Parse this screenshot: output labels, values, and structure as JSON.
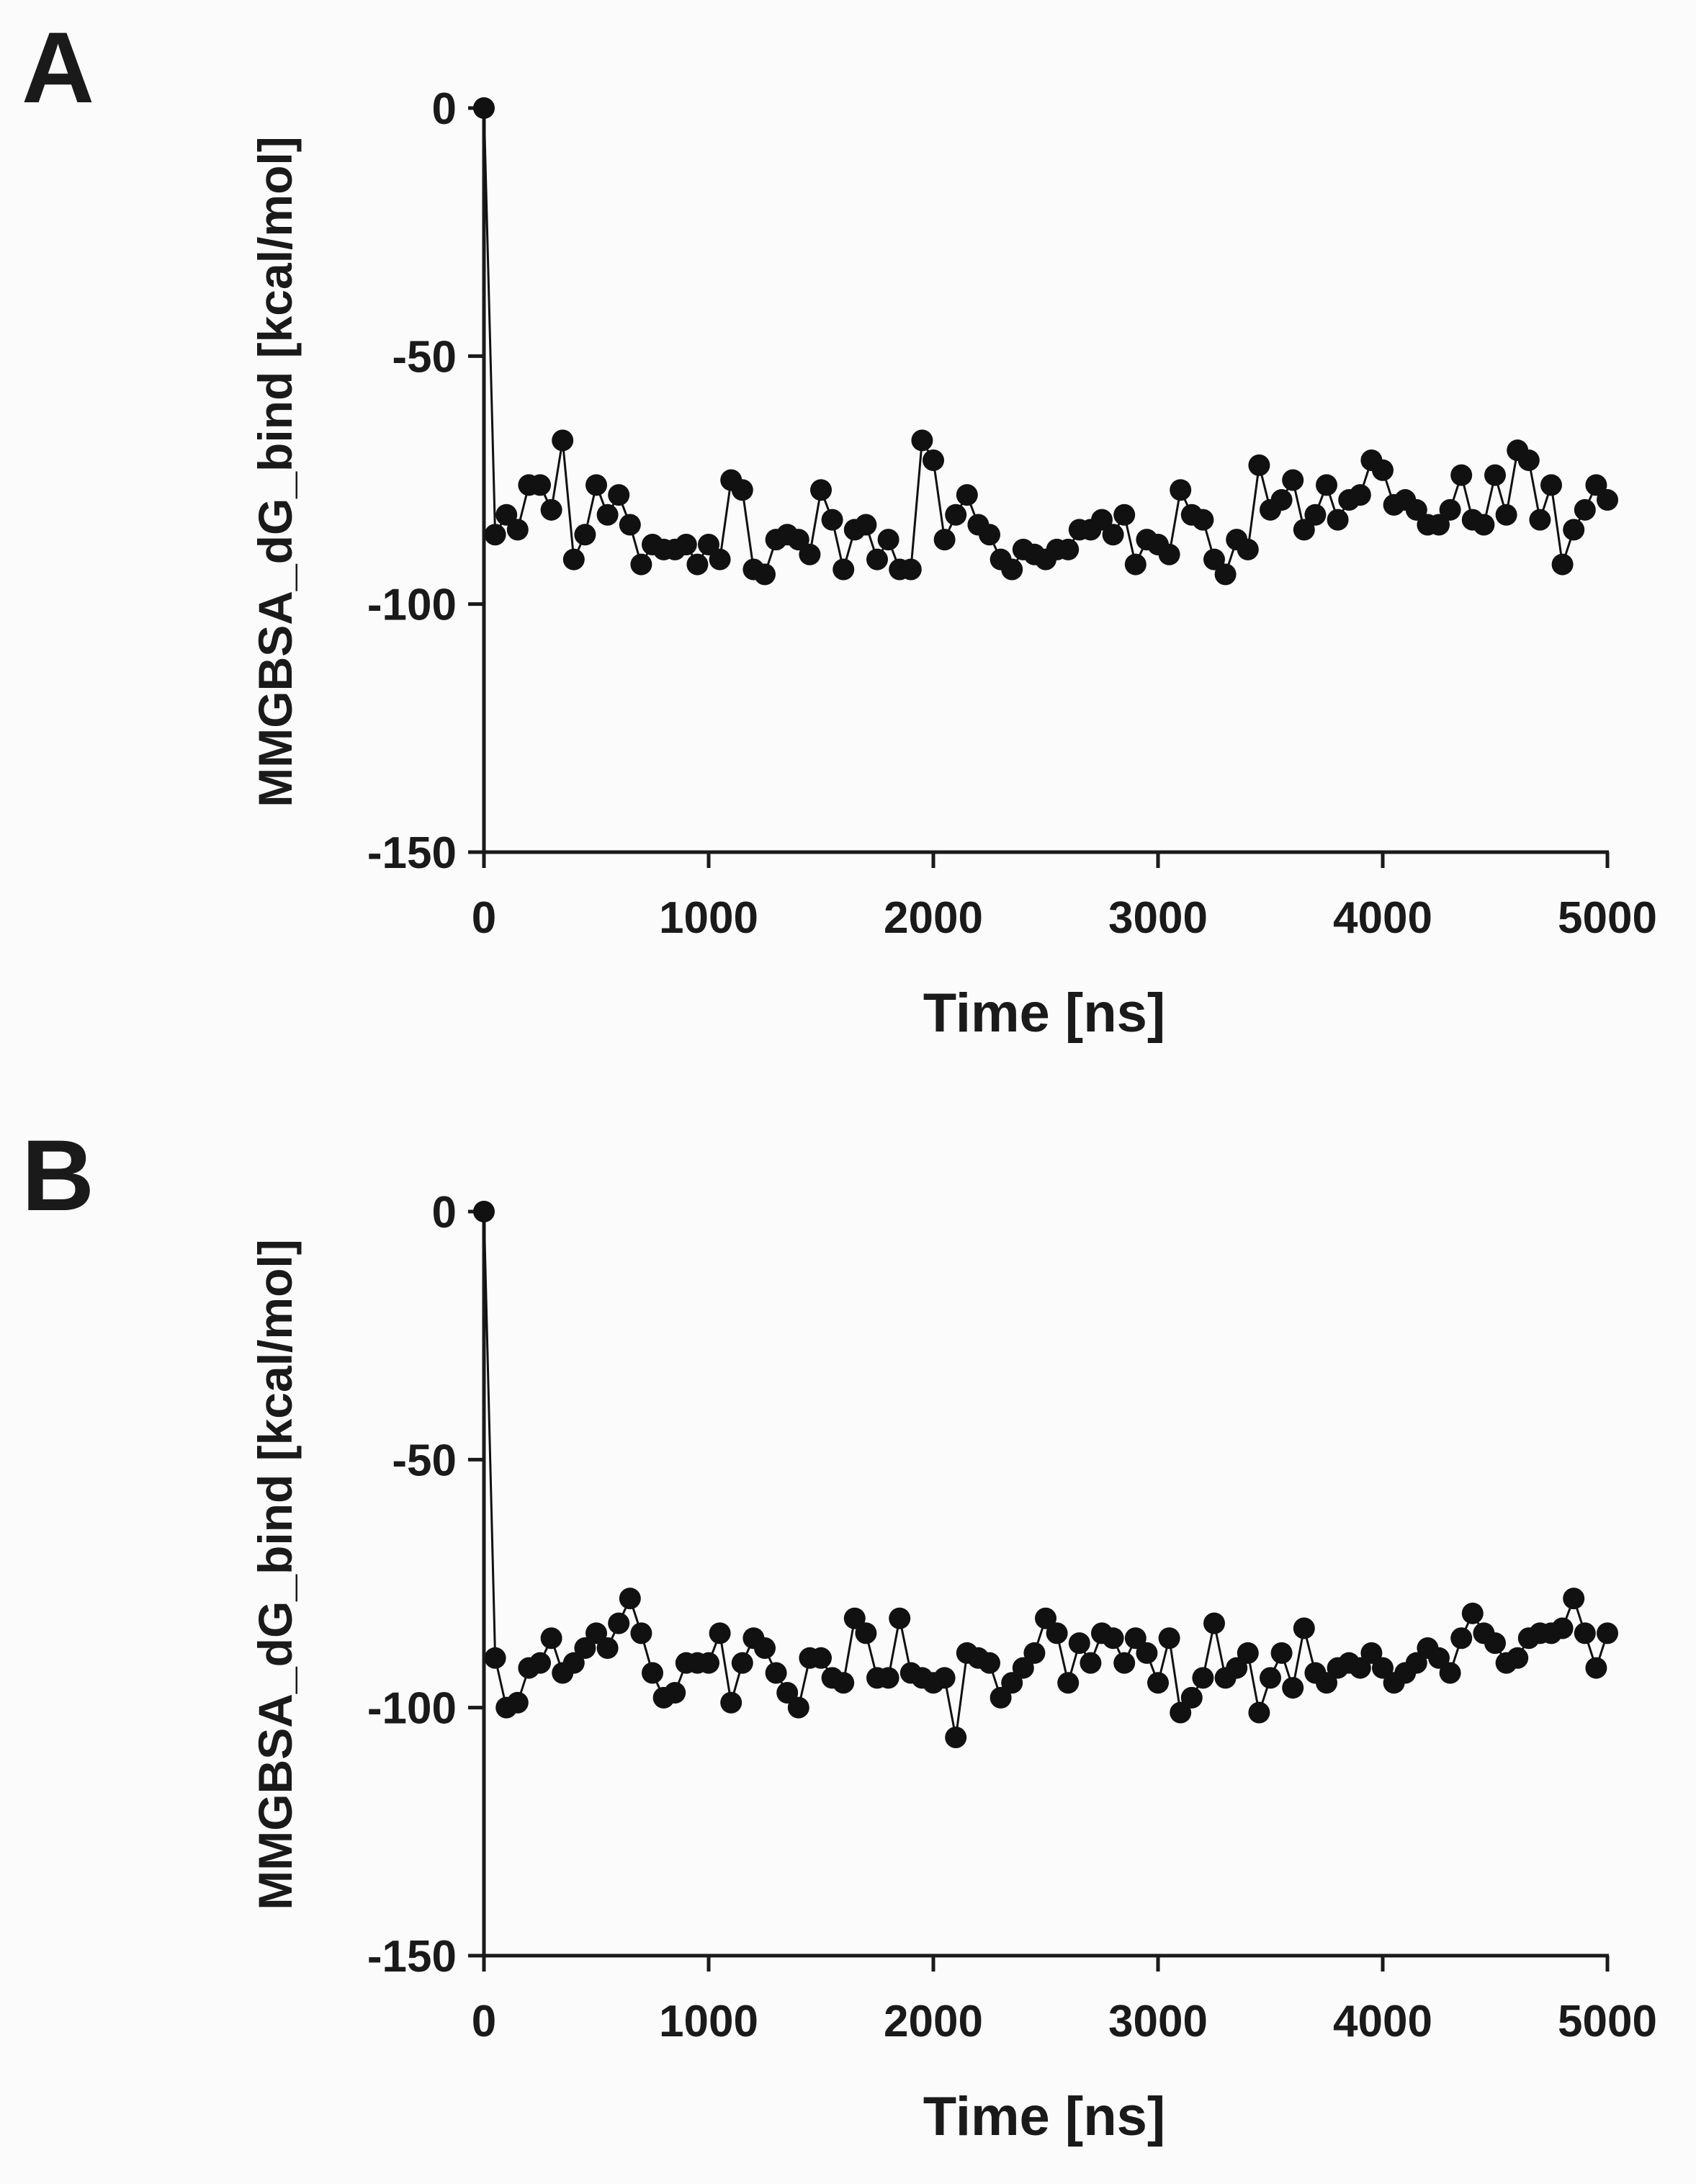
{
  "chart_data": [
    {
      "panel_label": "A",
      "type": "line",
      "xlabel": "Time [ns]",
      "ylabel": "MMGBSA_dG_bind [kcal/mol]",
      "xlim": [
        0,
        5000
      ],
      "ylim": [
        -150,
        0
      ],
      "xticks": [
        0,
        1000,
        2000,
        3000,
        4000,
        5000
      ],
      "yticks": [
        0,
        -50,
        -100,
        -150
      ],
      "xtick_labels": [
        "0",
        "1000",
        "2000",
        "3000",
        "4000",
        "5000"
      ],
      "ytick_labels": [
        "0",
        "-50",
        "-100",
        "-150"
      ],
      "x": [
        0,
        50,
        100,
        150,
        200,
        250,
        300,
        350,
        400,
        450,
        500,
        550,
        600,
        650,
        700,
        750,
        800,
        850,
        900,
        950,
        1000,
        1050,
        1100,
        1150,
        1200,
        1250,
        1300,
        1350,
        1400,
        1450,
        1500,
        1550,
        1600,
        1650,
        1700,
        1750,
        1800,
        1850,
        1900,
        1950,
        2000,
        2050,
        2100,
        2150,
        2200,
        2250,
        2300,
        2350,
        2400,
        2450,
        2500,
        2550,
        2600,
        2650,
        2700,
        2750,
        2800,
        2850,
        2900,
        2950,
        3000,
        3050,
        3100,
        3150,
        3200,
        3250,
        3300,
        3350,
        3400,
        3450,
        3500,
        3550,
        3600,
        3650,
        3700,
        3750,
        3800,
        3850,
        3900,
        3950,
        4000,
        4050,
        4100,
        4150,
        4200,
        4250,
        4300,
        4350,
        4400,
        4450,
        4500,
        4550,
        4600,
        4650,
        4700,
        4750,
        4800,
        4850,
        4900,
        4950,
        5000
      ],
      "values": [
        0,
        -86,
        -82,
        -85,
        -76,
        -76,
        -81,
        -67,
        -91,
        -86,
        -76,
        -82,
        -78,
        -84,
        -92,
        -88,
        -89,
        -89,
        -88,
        -92,
        -88,
        -91,
        -75,
        -77,
        -93,
        -94,
        -87,
        -86,
        -87,
        -90,
        -77,
        -83,
        -93,
        -85,
        -84,
        -91,
        -87,
        -93,
        -93,
        -67,
        -71,
        -87,
        -82,
        -78,
        -84,
        -86,
        -91,
        -93,
        -89,
        -90,
        -91,
        -89,
        -89,
        -85,
        -85,
        -83,
        -86,
        -82,
        -92,
        -87,
        -88,
        -90,
        -77,
        -82,
        -83,
        -91,
        -94,
        -87,
        -89,
        -72,
        -81,
        -79,
        -75,
        -85,
        -82,
        -76,
        -83,
        -79,
        -78,
        -71,
        -73,
        -80,
        -79,
        -81,
        -84,
        -84,
        -81,
        -74,
        -83,
        -84,
        -74,
        -82,
        -69,
        -71,
        -83,
        -76,
        -92,
        -85,
        -81,
        -76,
        -79
      ]
    },
    {
      "panel_label": "B",
      "type": "line",
      "xlabel": "Time [ns]",
      "ylabel": "MMGBSA_dG_bind [kcal/mol]",
      "xlim": [
        0,
        5000
      ],
      "ylim": [
        -150,
        0
      ],
      "xticks": [
        0,
        1000,
        2000,
        3000,
        4000,
        5000
      ],
      "yticks": [
        0,
        -50,
        -100,
        -150
      ],
      "xtick_labels": [
        "0",
        "1000",
        "2000",
        "3000",
        "4000",
        "5000"
      ],
      "ytick_labels": [
        "0",
        "-50",
        "-100",
        "-150"
      ],
      "x": [
        0,
        50,
        100,
        150,
        200,
        250,
        300,
        350,
        400,
        450,
        500,
        550,
        600,
        650,
        700,
        750,
        800,
        850,
        900,
        950,
        1000,
        1050,
        1100,
        1150,
        1200,
        1250,
        1300,
        1350,
        1400,
        1450,
        1500,
        1550,
        1600,
        1650,
        1700,
        1750,
        1800,
        1850,
        1900,
        1950,
        2000,
        2050,
        2100,
        2150,
        2200,
        2250,
        2300,
        2350,
        2400,
        2450,
        2500,
        2550,
        2600,
        2650,
        2700,
        2750,
        2800,
        2850,
        2900,
        2950,
        3000,
        3050,
        3100,
        3150,
        3200,
        3250,
        3300,
        3350,
        3400,
        3450,
        3500,
        3550,
        3600,
        3650,
        3700,
        3750,
        3800,
        3850,
        3900,
        3950,
        4000,
        4050,
        4100,
        4150,
        4200,
        4250,
        4300,
        4350,
        4400,
        4450,
        4500,
        4550,
        4600,
        4650,
        4700,
        4750,
        4800,
        4850,
        4900,
        4950,
        5000
      ],
      "values": [
        0,
        -90,
        -100,
        -99,
        -92,
        -91,
        -86,
        -93,
        -91,
        -88,
        -85,
        -88,
        -83,
        -78,
        -85,
        -93,
        -98,
        -97,
        -91,
        -91,
        -91,
        -85,
        -99,
        -91,
        -86,
        -88,
        -93,
        -97,
        -100,
        -90,
        -90,
        -94,
        -95,
        -82,
        -85,
        -94,
        -94,
        -82,
        -93,
        -94,
        -95,
        -94,
        -106,
        -89,
        -90,
        -91,
        -98,
        -95,
        -92,
        -89,
        -82,
        -85,
        -95,
        -87,
        -91,
        -85,
        -86,
        -91,
        -86,
        -89,
        -95,
        -86,
        -101,
        -98,
        -94,
        -83,
        -94,
        -92,
        -89,
        -101,
        -94,
        -89,
        -96,
        -84,
        -93,
        -95,
        -92,
        -91,
        -92,
        -89,
        -92,
        -95,
        -93,
        -91,
        -88,
        -90,
        -93,
        -86,
        -81,
        -85,
        -87,
        -91,
        -90,
        -86,
        -85,
        -85,
        -84,
        -78,
        -85,
        -92,
        -85
      ]
    }
  ]
}
